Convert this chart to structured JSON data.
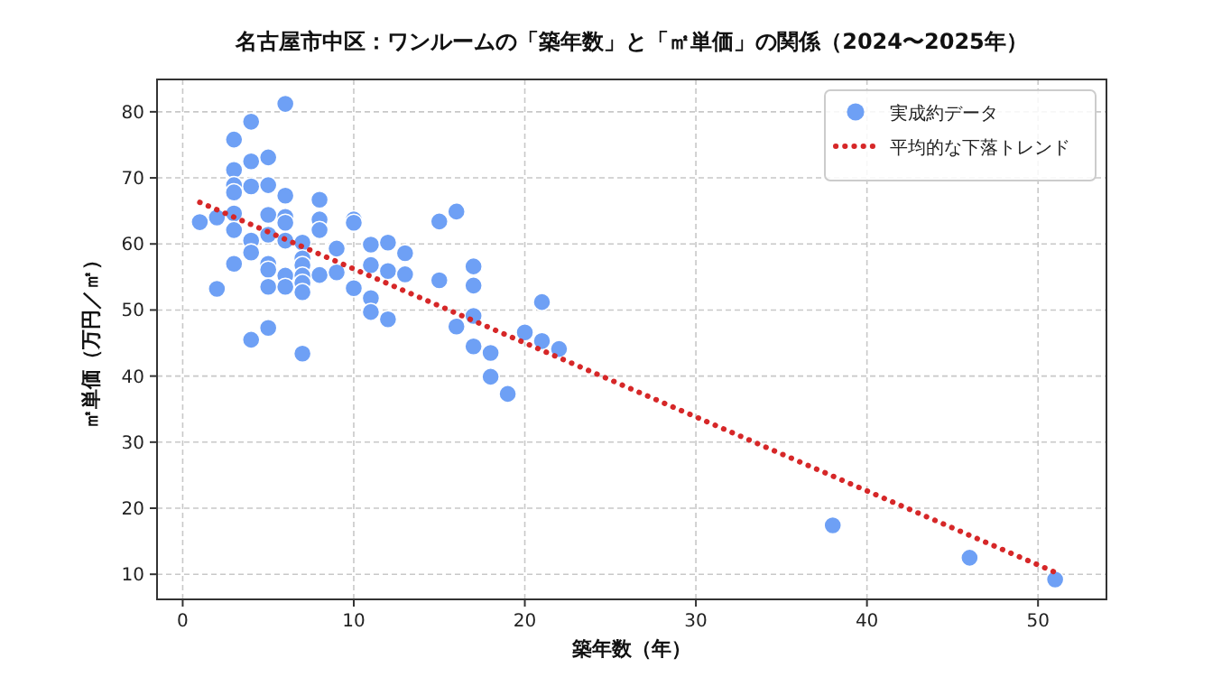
{
  "chart_data": {
    "type": "scatter",
    "title": "名古屋市中区：ワンルームの「築年数」と「㎡単価」の関係（2024〜2025年）",
    "xlabel": "築年数（年）",
    "ylabel": "㎡単価（万円／㎡）",
    "xlim": [
      -1.5,
      54
    ],
    "xticks": [
      0,
      10,
      20,
      30,
      40,
      50
    ],
    "ylim": [
      6.2,
      84.9
    ],
    "yticks": [
      10,
      20,
      30,
      40,
      50,
      60,
      70,
      80
    ],
    "grid": true,
    "legend": "top right",
    "series": [
      {
        "name": "実成約データ",
        "color": "#6ea0f5",
        "marker": "circle",
        "x": [
          1,
          2,
          2,
          3,
          3,
          3,
          3,
          3,
          3,
          3,
          4,
          4,
          4,
          4,
          4,
          4,
          5,
          5,
          5,
          5,
          5,
          5,
          5,
          5,
          6,
          6,
          6,
          6,
          6,
          6,
          6,
          7,
          7,
          7,
          7,
          7,
          7,
          7,
          8,
          8,
          8,
          8,
          9,
          9,
          10,
          10,
          10,
          11,
          11,
          11,
          11,
          12,
          12,
          12,
          13,
          13,
          15,
          15,
          16,
          16,
          17,
          17,
          17,
          17,
          18,
          18,
          19,
          20,
          21,
          21,
          22,
          38,
          46,
          51
        ],
        "values": [
          63.3,
          64.0,
          53.2,
          75.8,
          71.2,
          68.9,
          67.8,
          64.6,
          62.1,
          57.0,
          78.5,
          72.5,
          68.7,
          60.5,
          58.7,
          45.5,
          73.1,
          68.9,
          64.4,
          61.4,
          57.0,
          56.1,
          53.5,
          47.3,
          81.2,
          67.3,
          64.1,
          63.2,
          60.5,
          55.2,
          53.5,
          60.2,
          57.8,
          56.8,
          55.2,
          54.1,
          52.7,
          43.4,
          66.7,
          63.7,
          62.1,
          55.3,
          59.3,
          55.7,
          63.7,
          63.2,
          53.3,
          59.9,
          56.8,
          51.8,
          49.7,
          60.2,
          55.9,
          48.6,
          58.6,
          55.4,
          63.4,
          54.5,
          64.9,
          47.5,
          56.6,
          53.7,
          49.1,
          44.5,
          43.5,
          39.9,
          37.3,
          46.6,
          51.2,
          45.3,
          44.1,
          17.4,
          12.5,
          9.2
        ]
      },
      {
        "name": "平均的な下落トレンド",
        "type": "line",
        "color": "#d62728",
        "line_style": "dotted",
        "x": [
          1,
          51
        ],
        "values": [
          66.3,
          10.3
        ]
      }
    ]
  }
}
